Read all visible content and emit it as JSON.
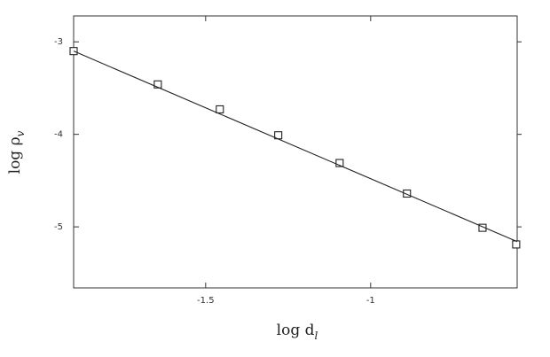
{
  "chart_data": {
    "type": "scatter",
    "x_label": {
      "base": "log d",
      "sub": "l"
    },
    "y_label": {
      "base": "log ρ",
      "sub": "v"
    },
    "series": [
      {
        "style": "markers",
        "color": "#222222",
        "x": [
          -1.9,
          -1.645,
          -1.457,
          -1.28,
          -1.094,
          -0.89,
          -0.661,
          -0.559
        ],
        "values": [
          -3.1,
          -3.46,
          -3.73,
          -4.01,
          -4.31,
          -4.64,
          -5.01,
          -5.19
        ]
      },
      {
        "style": "line",
        "color": "#222222",
        "x": [
          -1.9,
          -0.556
        ],
        "values": [
          -3.1,
          -5.16
        ]
      }
    ],
    "xlim": [
      -1.9,
      -0.556
    ],
    "ylim": [
      -5.66,
      -2.72
    ],
    "xticks": [
      -1.5,
      -1
    ],
    "yticks": [
      -3,
      -4,
      -5
    ],
    "grid": false
  }
}
